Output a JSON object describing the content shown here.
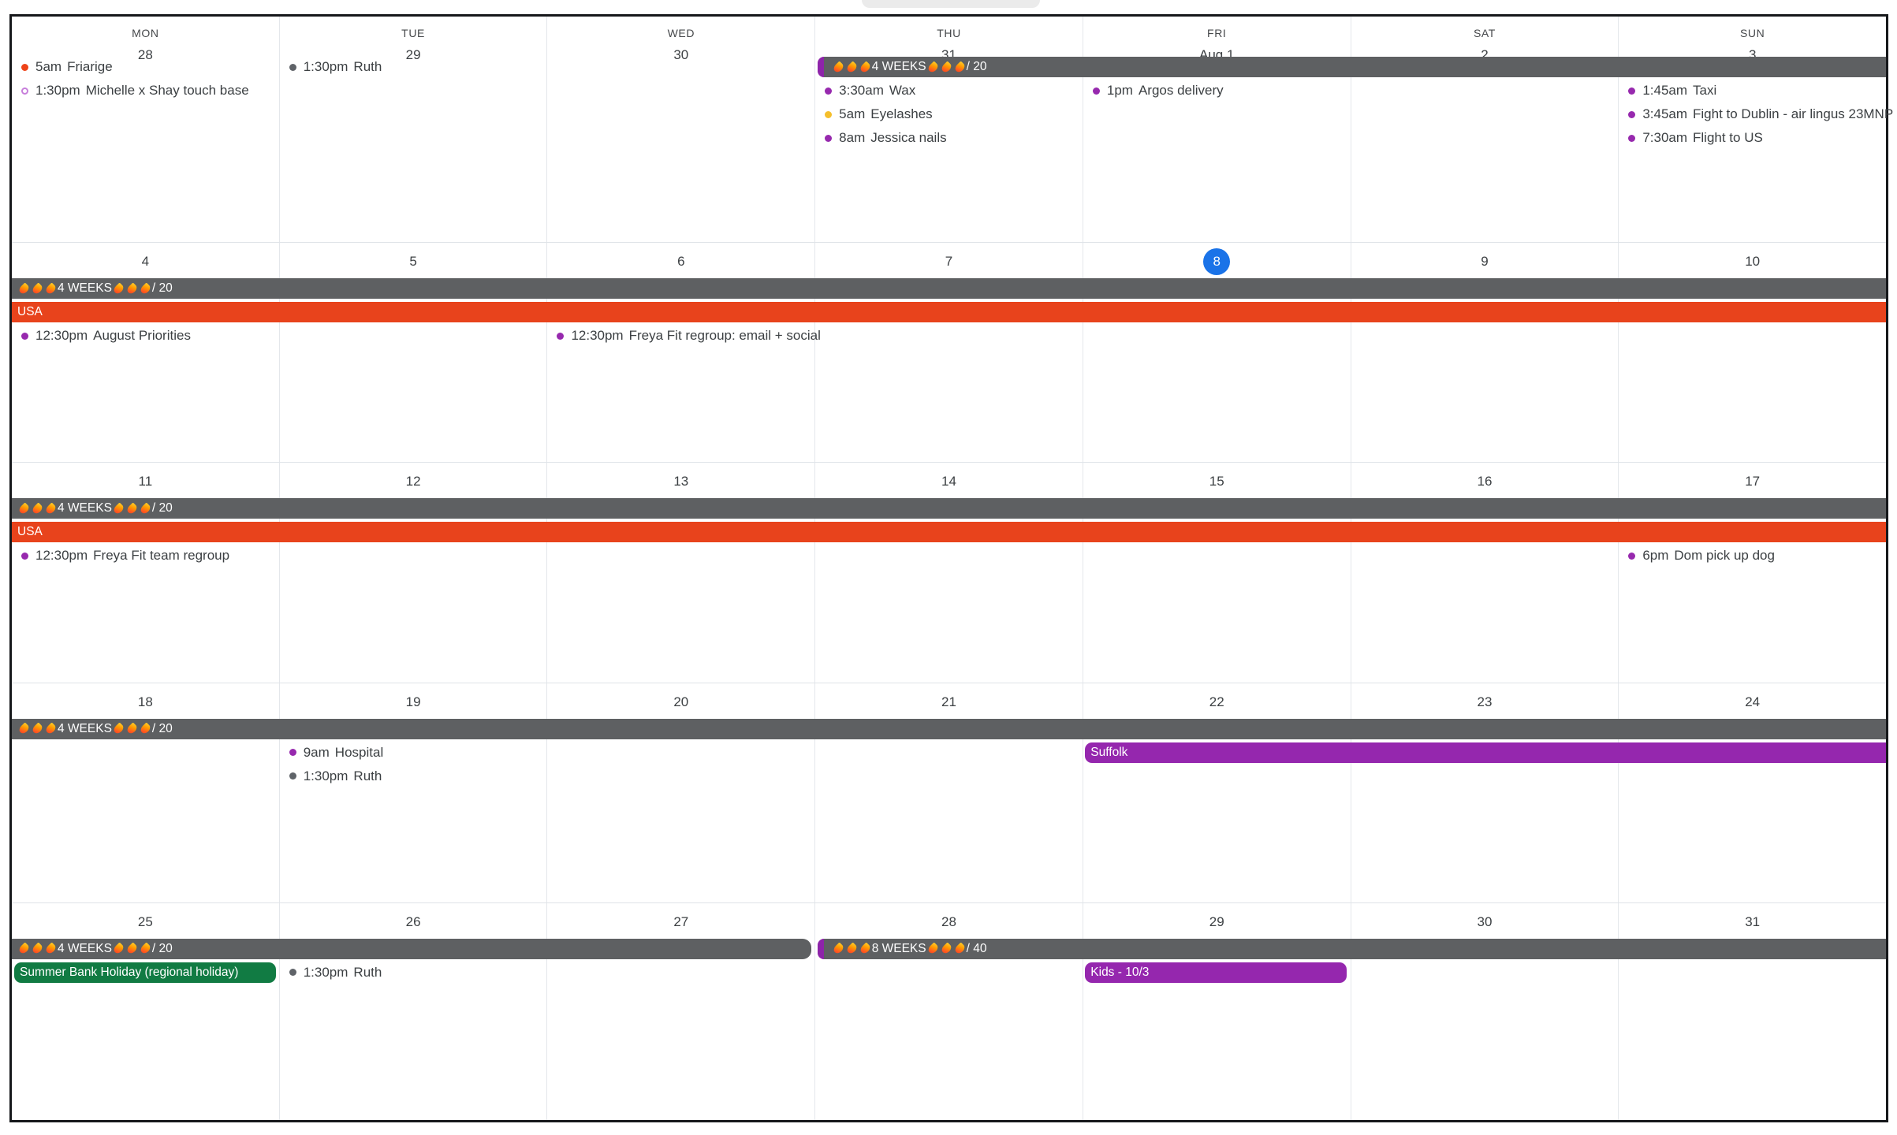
{
  "day_headers": [
    "MON",
    "TUE",
    "WED",
    "THU",
    "FRI",
    "SAT",
    "SUN"
  ],
  "colors": {
    "today": "#1A73E8",
    "gray_banner": "#5E6062",
    "purple_cap": "#8E24AA",
    "orange_banner": "#E8431C",
    "purple_banner": "#9527AE",
    "green_banner": "#117B43",
    "grape": "#9729AE",
    "graphite": "#5F6368",
    "tomato": "#EE4318",
    "banana": "#F5BF2C",
    "violet_hollow": "#C77FDB"
  },
  "weeks": [
    {
      "dates": [
        "28",
        "29",
        "30",
        "31",
        "Aug 1",
        "2",
        "3"
      ],
      "banners": [
        {
          "label": "🔥🔥🔥4 WEEKS🔥🔥🔥 / 20",
          "color": "gray_banner",
          "start": 3,
          "span": 4,
          "slot": 0,
          "cap": true,
          "round_left": true,
          "round_right": false
        }
      ],
      "events": [
        [
          {
            "time": "5am",
            "title": "Friarige",
            "dot": "tomato"
          },
          {
            "time": "1:30pm",
            "title": "Michelle x Shay touch base",
            "dot": "violet_hollow",
            "hollow": true
          }
        ],
        [
          {
            "time": "1:30pm",
            "title": "Ruth",
            "dot": "graphite"
          }
        ],
        [],
        [
          {
            "time": "3:30am",
            "title": "Wax",
            "dot": "grape"
          },
          {
            "time": "5am",
            "title": "Eyelashes",
            "dot": "banana"
          },
          {
            "time": "8am",
            "title": "Jessica nails",
            "dot": "grape"
          }
        ],
        [
          {
            "time": "1pm",
            "title": "Argos delivery",
            "dot": "grape"
          }
        ],
        [],
        [
          {
            "time": "1:45am",
            "title": "Taxi",
            "dot": "grape"
          },
          {
            "time": "3:45am",
            "title": "Fight to Dublin - air lingus 23MNP",
            "dot": "grape"
          },
          {
            "time": "7:30am",
            "title": "Flight to US",
            "dot": "grape"
          }
        ]
      ]
    },
    {
      "dates": [
        "4",
        "5",
        "6",
        "7",
        "8",
        "9",
        "10"
      ],
      "today_index": 4,
      "banners": [
        {
          "label": "🔥🔥🔥4 WEEKS🔥🔥🔥 / 20",
          "color": "gray_banner",
          "start": 0,
          "span": 7,
          "slot": 0
        },
        {
          "label": "USA",
          "color": "orange_banner",
          "start": 0,
          "span": 7,
          "slot": 1
        }
      ],
      "events": [
        [
          {
            "time": "12:30pm",
            "title": "August Priorities",
            "dot": "grape"
          }
        ],
        [],
        [
          {
            "time": "12:30pm",
            "title": "Freya Fit regroup: email + social",
            "dot": "grape"
          }
        ],
        [],
        [],
        [],
        []
      ]
    },
    {
      "dates": [
        "11",
        "12",
        "13",
        "14",
        "15",
        "16",
        "17"
      ],
      "banners": [
        {
          "label": "🔥🔥🔥4 WEEKS🔥🔥🔥 / 20",
          "color": "gray_banner",
          "start": 0,
          "span": 7,
          "slot": 0
        },
        {
          "label": "USA",
          "color": "orange_banner",
          "start": 0,
          "span": 7,
          "slot": 1
        }
      ],
      "events": [
        [
          {
            "time": "12:30pm",
            "title": "Freya Fit team regroup",
            "dot": "grape"
          }
        ],
        [],
        [],
        [],
        [],
        [],
        [
          {
            "time": "6pm",
            "title": "Dom pick up dog",
            "dot": "grape"
          }
        ]
      ]
    },
    {
      "dates": [
        "18",
        "19",
        "20",
        "21",
        "22",
        "23",
        "24"
      ],
      "banners": [
        {
          "label": "🔥🔥🔥4 WEEKS🔥🔥🔥 / 20",
          "color": "gray_banner",
          "start": 0,
          "span": 7,
          "slot": 0
        },
        {
          "label": "Suffolk",
          "color": "purple_banner",
          "start": 4,
          "span": 3,
          "slot": 1,
          "round_left": true
        }
      ],
      "events": [
        [],
        [
          {
            "time": "9am",
            "title": "Hospital",
            "dot": "grape"
          },
          {
            "time": "1:30pm",
            "title": "Ruth",
            "dot": "graphite"
          }
        ],
        [],
        [],
        [],
        [],
        []
      ]
    },
    {
      "dates": [
        "25",
        "26",
        "27",
        "28",
        "29",
        "30",
        "31"
      ],
      "banners": [
        {
          "label": "🔥🔥🔥4 WEEKS🔥🔥🔥 / 20",
          "color": "gray_banner",
          "start": 0,
          "span": 3,
          "slot": 0,
          "round_right": true
        },
        {
          "label": "🔥🔥🔥8 WEEKS🔥🔥🔥 / 40",
          "color": "gray_banner",
          "start": 3,
          "span": 4,
          "slot": 0,
          "cap": true,
          "round_left": true
        },
        {
          "label": "Summer Bank Holiday (regional holiday)",
          "color": "green_banner",
          "start": 0,
          "span": 1,
          "slot": 1,
          "round_left": true,
          "round_right": true
        },
        {
          "label": "Kids - 10/3",
          "color": "purple_banner",
          "start": 4,
          "span": 1,
          "slot": 1,
          "round_left": true,
          "round_right": true
        }
      ],
      "events": [
        [],
        [
          {
            "time": "1:30pm",
            "title": "Ruth",
            "dot": "graphite"
          }
        ],
        [],
        [],
        [],
        [],
        []
      ]
    }
  ]
}
